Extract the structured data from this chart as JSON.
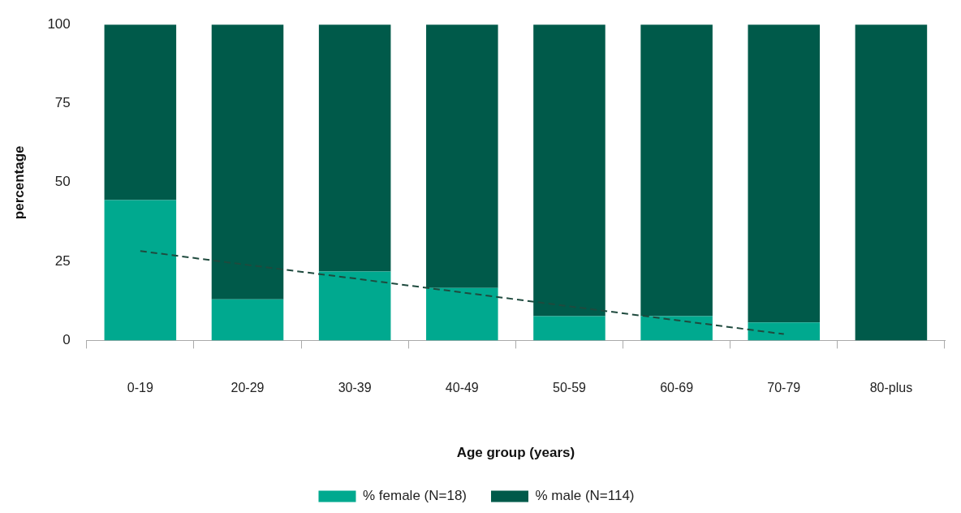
{
  "chart_data": {
    "type": "bar",
    "stacked": true,
    "xlabel": "Age group (years)",
    "ylabel": "percentage",
    "categories": [
      "0-19",
      "20-29",
      "30-39",
      "40-49",
      "50-59",
      "60-69",
      "70-79",
      "80-plus"
    ],
    "series": [
      {
        "name": "% female (N=18)",
        "color": "#00a98f",
        "values": [
          44.4,
          13.0,
          21.8,
          16.6,
          7.7,
          7.7,
          5.7,
          0
        ]
      },
      {
        "name": "% male (N=114)",
        "color": "#005a4a",
        "values": [
          55.6,
          87.0,
          78.2,
          83.4,
          92.3,
          92.3,
          94.3,
          100
        ]
      },
      {
        "type": "line",
        "color": "#1f4a3e",
        "line_style": "dashed",
        "marker": "none",
        "values": [
          28.3,
          23.9,
          19.6,
          15.2,
          10.8,
          6.4,
          2.0,
          null
        ]
      }
    ],
    "ylim": [
      0,
      100
    ],
    "yticks": [
      0,
      25,
      50,
      75,
      100
    ],
    "grid": false,
    "legend": "bottom"
  }
}
